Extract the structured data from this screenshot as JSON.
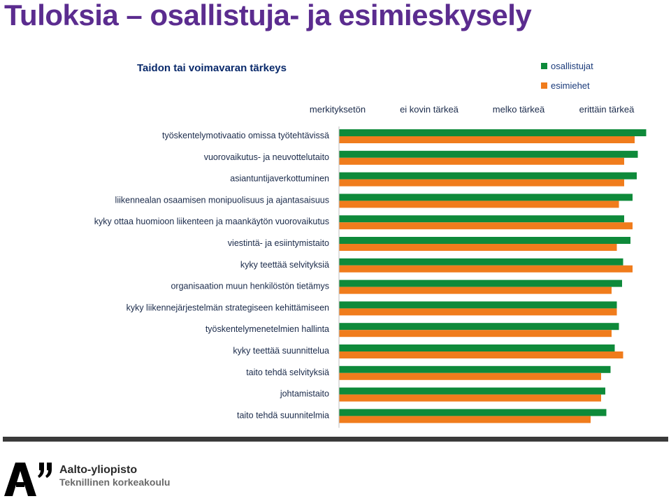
{
  "page": {
    "title": "Tuloksia – osallistuja- ja esimieskysely",
    "logo_line1": "Aalto-yliopisto",
    "logo_line2": "Teknillinen korkeakoulu"
  },
  "colors": {
    "title": "#5b2c8f",
    "participants": "#0e8a3a",
    "supervisors": "#f07c1c"
  },
  "chart_data": {
    "type": "bar",
    "orientation": "horizontal",
    "title": "Taidon tai voimavaran tärkeys",
    "x_tick_labels": [
      "merkityksetön",
      "ei kovin tärkeä",
      "melko tärkeä",
      "erittäin tärkeä"
    ],
    "xlim": [
      1,
      4
    ],
    "legend_position": "top-right",
    "categories": [
      "työskentelymotivaatio omissa työtehtävissä",
      "vuorovaikutus- ja neuvottelutaito",
      "asiantuntijaverkottuminen",
      "liikennealan osaamisen monipuolisuus ja ajantasaisuus",
      "kyky ottaa huomioon liikenteen ja maankäytön vuorovaikutus",
      "viestintä- ja esiintymistaito",
      "kyky teettää selvityksiä",
      "organisaation muun henkilöstön tietämys",
      "kyky liikennejärjestelmän strategiseen kehittämiseen",
      "työskentelymenetelmien hallinta",
      "kyky teettää suunnittelua",
      "taito tehdä selvityksiä",
      "johtamistaito",
      "taito tehdä suunnitelmia"
    ],
    "series": [
      {
        "name": "osallistujat",
        "values": [
          3.93,
          3.85,
          3.84,
          3.8,
          3.72,
          3.78,
          3.71,
          3.7,
          3.65,
          3.67,
          3.63,
          3.59,
          3.54,
          3.55
        ]
      },
      {
        "name": "esimiehet",
        "values": [
          3.82,
          3.72,
          3.72,
          3.67,
          3.8,
          3.65,
          3.8,
          3.6,
          3.65,
          3.6,
          3.71,
          3.5,
          3.5,
          3.4
        ]
      }
    ]
  }
}
